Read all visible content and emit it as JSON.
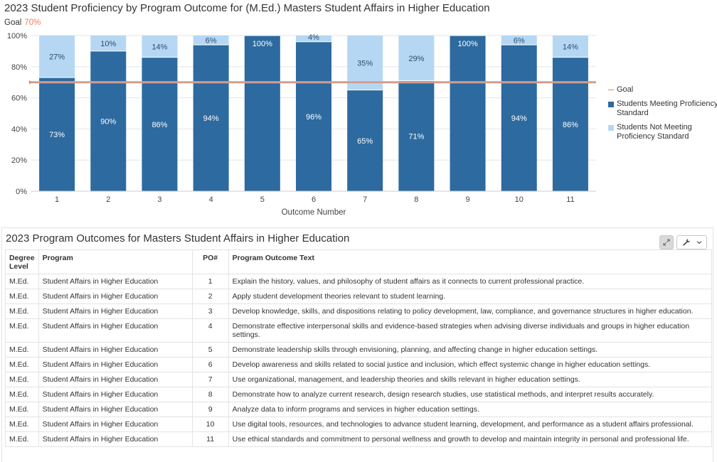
{
  "chart_title": "2023 Student Proficiency by Program Outcome for (M.Ed.) Masters Student Affairs in Higher Education",
  "goal_caption": {
    "label": "Goal",
    "value": "70%"
  },
  "chart_data": {
    "type": "bar",
    "stacked": true,
    "categories": [
      "1",
      "2",
      "3",
      "4",
      "5",
      "6",
      "7",
      "8",
      "9",
      "10",
      "11"
    ],
    "series": [
      {
        "name": "Students Meeting Proficiency Standard",
        "color": "#2d6a9f",
        "values": [
          73,
          90,
          86,
          94,
          100,
          96,
          65,
          71,
          100,
          94,
          86
        ],
        "labels": [
          "73%",
          "90%",
          "86%",
          "94%",
          "100%",
          "96%",
          "65%",
          "71%",
          "100%",
          "94%",
          "86%"
        ]
      },
      {
        "name": "Students Not Meeting Proficiency Standard",
        "color": "#b5d7f3",
        "values": [
          27,
          10,
          14,
          6,
          0,
          4,
          35,
          29,
          0,
          6,
          14
        ],
        "labels": [
          "27%",
          "10%",
          "14%",
          "6%",
          "",
          "4%",
          "35%",
          "29%",
          "",
          "6%",
          "14%"
        ]
      }
    ],
    "goal": {
      "name": "Goal",
      "value": 70,
      "color": "#f07c5c"
    },
    "xlabel": "Outcome Number",
    "ylabel": "",
    "ylim": [
      0,
      100
    ],
    "yticks": [
      "0%",
      "20%",
      "40%",
      "60%",
      "80%",
      "100%"
    ],
    "grid": true,
    "legend_position": "right"
  },
  "legend": [
    {
      "label": "Goal",
      "kind": "line",
      "color": "#f07c5c"
    },
    {
      "label": "Students Meeting Proficiency Standard",
      "kind": "swatch",
      "color": "#2d6a9f"
    },
    {
      "label": "Students Not Meeting Proficiency Standard",
      "kind": "swatch",
      "color": "#b5d7f3"
    }
  ],
  "table": {
    "title": "2023 Program Outcomes for Masters Student Affairs in Higher Education",
    "columns": [
      "Degree Level",
      "Program",
      "PO#",
      "Program Outcome Text"
    ],
    "rows": [
      [
        "M.Ed.",
        "Student Affairs in Higher Education",
        "1",
        "Explain the history, values, and philosophy of student affairs as it connects to current professional practice."
      ],
      [
        "M.Ed.",
        "Student Affairs in Higher Education",
        "2",
        "Apply student development theories relevant to student learning."
      ],
      [
        "M.Ed.",
        "Student Affairs in Higher Education",
        "3",
        "Develop knowledge, skills, and dispositions relating to policy development, law, compliance, and governance structures in higher education."
      ],
      [
        "M.Ed.",
        "Student Affairs in Higher Education",
        "4",
        "Demonstrate effective interpersonal skills and evidence-based strategies when advising diverse individuals and groups in higher education settings."
      ],
      [
        "M.Ed.",
        "Student Affairs in Higher Education",
        "5",
        "Demonstrate leadership skills through envisioning, planning, and affecting change in higher education settings."
      ],
      [
        "M.Ed.",
        "Student Affairs in Higher Education",
        "6",
        "Develop awareness and skills related to social justice and inclusion, which effect systemic change in higher education settings."
      ],
      [
        "M.Ed.",
        "Student Affairs in Higher Education",
        "7",
        "Use organizational, management, and leadership theories and skills relevant in higher education settings."
      ],
      [
        "M.Ed.",
        "Student Affairs in Higher Education",
        "8",
        "Demonstrate how to analyze current research, design research studies, use statistical methods, and interpret results accurately."
      ],
      [
        "M.Ed.",
        "Student Affairs in Higher Education",
        "9",
        "Analyze data to inform programs and services in higher education settings."
      ],
      [
        "M.Ed.",
        "Student Affairs in Higher Education",
        "10",
        "Use digital tools, resources, and technologies to advance student learning, development, and performance as a student affairs professional."
      ],
      [
        "M.Ed.",
        "Student Affairs in Higher Education",
        "11",
        "Use ethical standards and commitment to personal wellness and growth to develop and maintain integrity in personal and professional life."
      ]
    ]
  },
  "toolbar": {
    "expand_icon": "expand-icon",
    "settings_icon": "wrench-icon",
    "dropdown_icon": "chevron-down-icon"
  }
}
